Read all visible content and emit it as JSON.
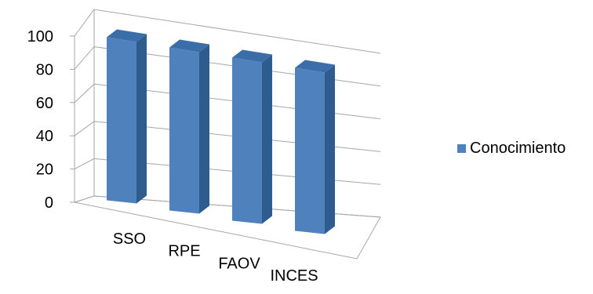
{
  "chart_data": {
    "type": "bar",
    "title": "",
    "xlabel": "",
    "ylabel": "",
    "categories": [
      "SSO",
      "RPE",
      "FAOV",
      "INCES"
    ],
    "series": [
      {
        "name": "Conocimiento",
        "values": [
          100,
          100,
          100,
          100
        ]
      }
    ],
    "ylim": [
      0,
      100
    ],
    "yticks": [
      "0",
      "20",
      "40",
      "60",
      "80",
      "100"
    ],
    "grid": true,
    "legend_position": "right",
    "three_d": true
  },
  "colors": {
    "bar_front": "#4F81BD",
    "bar_side": "#2E5C8F",
    "bar_top": "#3B6DA8",
    "grid": "#A6A6A6"
  }
}
